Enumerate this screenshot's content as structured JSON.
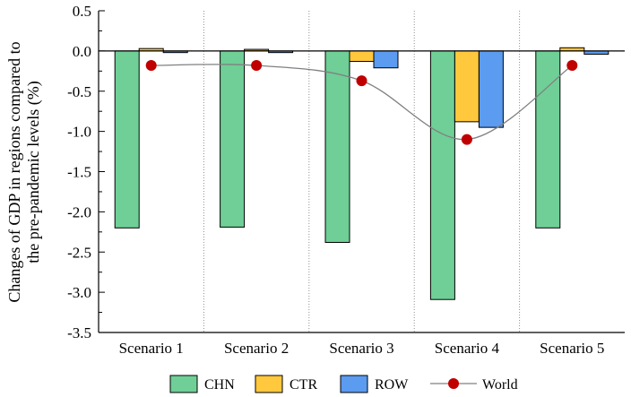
{
  "chart_data": {
    "type": "bar",
    "categories": [
      "Scenario 1",
      "Scenario 2",
      "Scenario 3",
      "Scenario 4",
      "Scenario 5"
    ],
    "series": [
      {
        "name": "CHN",
        "color": "#6fcf97",
        "values": [
          -2.2,
          -2.19,
          -2.38,
          -3.09,
          -2.2
        ]
      },
      {
        "name": "CTR",
        "color": "#ffc83d",
        "values": [
          0.03,
          0.02,
          -0.13,
          -0.88,
          0.04
        ]
      },
      {
        "name": "ROW",
        "color": "#5b9bf0",
        "values": [
          -0.02,
          -0.02,
          -0.21,
          -0.95,
          -0.04
        ]
      }
    ],
    "line_series": {
      "name": "World",
      "type": "line",
      "color": "#c00000",
      "line_color": "#808080",
      "values": [
        -0.18,
        -0.18,
        -0.37,
        -1.1,
        -0.18
      ]
    },
    "ylabel_lines": [
      "Changes of GDP in regions compared to",
      "the pre-pandemic levels (%)"
    ],
    "ylim": [
      -3.5,
      0.5
    ],
    "yticks": [
      0.5,
      0.0,
      -0.5,
      -1.0,
      -1.5,
      -2.0,
      -2.5,
      -3.0,
      -3.5
    ],
    "ytick_labels": [
      "0.5",
      "0.0",
      "-0.5",
      "-1.0",
      "-1.5",
      "-2.0",
      "-2.5",
      "-3.0",
      "-3.5"
    ],
    "legend_position": "bottom-center",
    "grid": false,
    "category_separators": true
  }
}
